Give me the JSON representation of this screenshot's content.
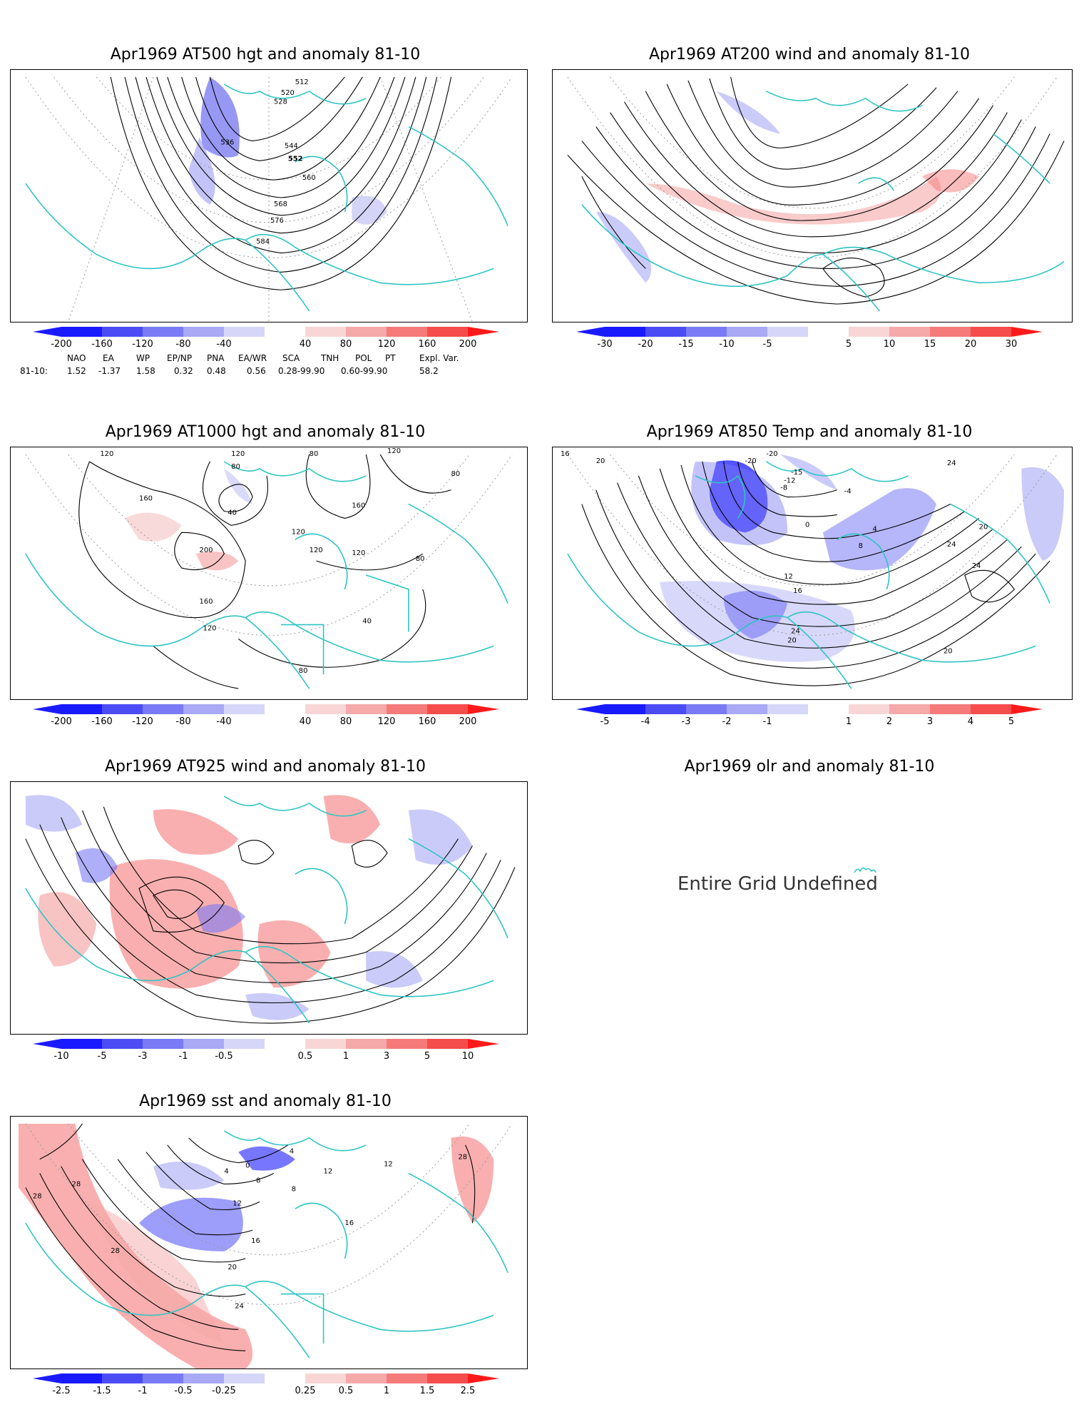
{
  "panels": [
    {
      "id": "p500",
      "title": "Apr1969 AT500 hgt and anomaly 81-10",
      "contour_labels": [
        "512",
        "520",
        "528",
        "536",
        "544",
        "552",
        "560",
        "568",
        "576",
        "584"
      ],
      "colorbar": [
        "-200",
        "-160",
        "-120",
        "-80",
        "-40",
        "40",
        "80",
        "120",
        "160",
        "200"
      ]
    },
    {
      "id": "p200",
      "title": "Apr1969 AT200 wind and anomaly 81-10",
      "contour_labels": [],
      "colorbar": [
        "-30",
        "-20",
        "-15",
        "-10",
        "-5",
        "5",
        "10",
        "15",
        "20",
        "30"
      ]
    },
    {
      "id": "p1000",
      "title": "Apr1969 AT1000 hgt and anomaly 81-10",
      "contour_labels": [
        "120",
        "120",
        "80",
        "80",
        "120",
        "80",
        "160",
        "40",
        "160",
        "120",
        "200",
        "120",
        "120",
        "80",
        "160",
        "120",
        "40",
        "80"
      ],
      "colorbar": [
        "-200",
        "-160",
        "-120",
        "-80",
        "-40",
        "40",
        "80",
        "120",
        "160",
        "200"
      ]
    },
    {
      "id": "p850",
      "title": "Apr1969 AT850 Temp and anomaly 81-10",
      "contour_labels": [
        "16",
        "20",
        "-20",
        "-20",
        "-15",
        "-12",
        "-8",
        "-4",
        "0",
        "4",
        "8",
        "12",
        "16",
        "20",
        "24",
        "24",
        "24",
        "20",
        "20",
        "24"
      ],
      "colorbar": [
        "-5",
        "-4",
        "-3",
        "-2",
        "-1",
        "1",
        "2",
        "3",
        "4",
        "5"
      ]
    },
    {
      "id": "p925",
      "title": "Apr1969 AT925 wind and anomaly 81-10",
      "contour_labels": [],
      "colorbar": [
        "-10",
        "-5",
        "-3",
        "-1",
        "-0.5",
        "0.5",
        "1",
        "3",
        "5",
        "10"
      ]
    },
    {
      "id": "polr",
      "title": "Apr1969 olr and anomaly 81-10",
      "message": "Entire Grid Undefined"
    },
    {
      "id": "psst",
      "title": "Apr1969 sst and anomaly 81-10",
      "contour_labels": [
        "28",
        "28",
        "28",
        "24",
        "20",
        "16",
        "12",
        "8",
        "4",
        "0",
        "4",
        "8",
        "12",
        "16",
        "28",
        "12"
      ],
      "colorbar": [
        "-2.5",
        "-1.5",
        "-1",
        "-0.5",
        "-0.25",
        "0.25",
        "0.5",
        "1",
        "1.5",
        "2.5"
      ]
    }
  ],
  "teleconnection": {
    "headers": [
      "NAO",
      "EA",
      "WP",
      "EP/NP",
      "PNA",
      "EA/WR",
      "SCA",
      "TNH",
      "POL",
      "PT",
      "Expl. Var."
    ],
    "row_label": "81-10:",
    "values": [
      "1.52",
      "-1.37",
      "1.58",
      "0.32",
      "0.48",
      "0.56",
      "0.28-99.90",
      "0.60-99.90",
      "58.2"
    ]
  },
  "colors": {
    "coast": "#2ec4c4",
    "neg_scale": [
      "#1a1aff",
      "#4c4cf5",
      "#7a7af5",
      "#a9a9f5",
      "#d6d6f8"
    ],
    "pos_scale": [
      "#f8d6d6",
      "#f5a9a9",
      "#f57a7a",
      "#f54c4c",
      "#ff1a1a"
    ]
  }
}
